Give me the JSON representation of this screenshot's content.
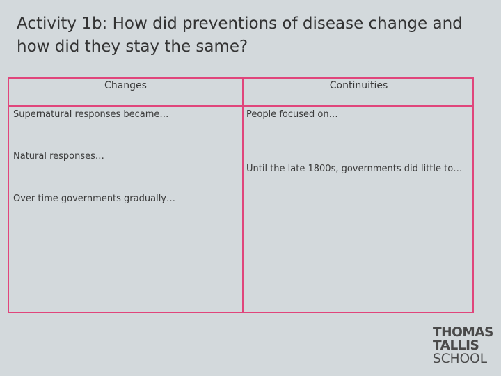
{
  "title": "Activity 1b: How did preventions of disease change and how did they stay the same?",
  "table": {
    "headers": {
      "changes": "Changes",
      "continuities": "Continuities"
    },
    "changes": [
      "Supernatural responses became…",
      "Natural responses…",
      "Over time governments gradually…"
    ],
    "continuities": [
      "People focused on…",
      "Until the late 1800s, governments did little to…"
    ]
  },
  "logo": {
    "line1": "THOMAS",
    "line2": "TALLIS",
    "line3": "SCHOOL"
  },
  "colors": {
    "background": "#d3d9dc",
    "table_border": "#e0457b",
    "text": "#3a3a3a"
  }
}
